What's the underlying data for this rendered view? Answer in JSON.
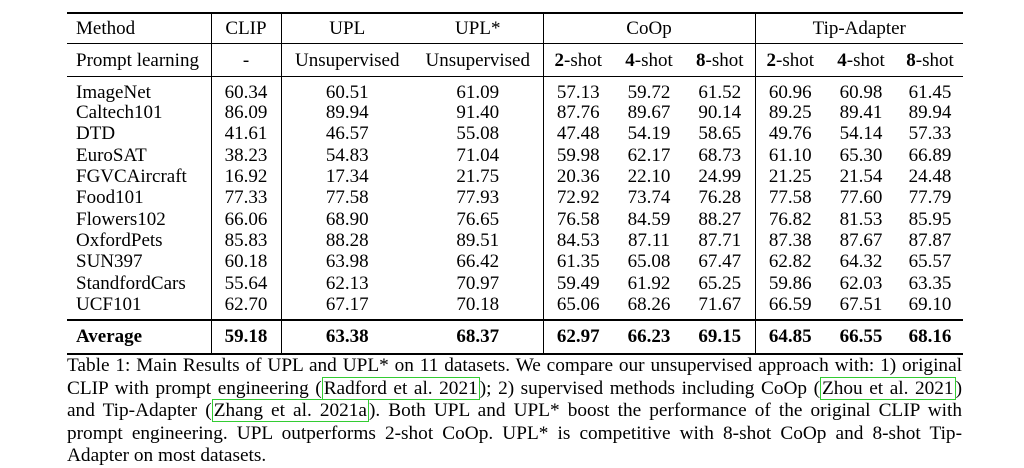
{
  "table": {
    "header1": [
      "Method",
      "CLIP",
      "UPL",
      "UPL*",
      "CoOp",
      "Tip-Adapter"
    ],
    "header2": {
      "label": "Prompt learning",
      "clip": "-",
      "upl": "Unsupervised",
      "uplstar": "Unsupervised",
      "shots": [
        {
          "num": "2",
          "suffix": "-shot"
        },
        {
          "num": "4",
          "suffix": "-shot"
        },
        {
          "num": "8",
          "suffix": "-shot"
        },
        {
          "num": "2",
          "suffix": "-shot"
        },
        {
          "num": "4",
          "suffix": "-shot"
        },
        {
          "num": "8",
          "suffix": "-shot"
        }
      ]
    },
    "rows": [
      [
        "ImageNet",
        "60.34",
        "60.51",
        "61.09",
        "57.13",
        "59.72",
        "61.52",
        "60.96",
        "60.98",
        "61.45"
      ],
      [
        "Caltech101",
        "86.09",
        "89.94",
        "91.40",
        "87.76",
        "89.67",
        "90.14",
        "89.25",
        "89.41",
        "89.94"
      ],
      [
        "DTD",
        "41.61",
        "46.57",
        "55.08",
        "47.48",
        "54.19",
        "58.65",
        "49.76",
        "54.14",
        "57.33"
      ],
      [
        "EuroSAT",
        "38.23",
        "54.83",
        "71.04",
        "59.98",
        "62.17",
        "68.73",
        "61.10",
        "65.30",
        "66.89"
      ],
      [
        "FGVCAircraft",
        "16.92",
        "17.34",
        "21.75",
        "20.36",
        "22.10",
        "24.99",
        "21.25",
        "21.54",
        "24.48"
      ],
      [
        "Food101",
        "77.33",
        "77.58",
        "77.93",
        "72.92",
        "73.74",
        "76.28",
        "77.58",
        "77.60",
        "77.79"
      ],
      [
        "Flowers102",
        "66.06",
        "68.90",
        "76.65",
        "76.58",
        "84.59",
        "88.27",
        "76.82",
        "81.53",
        "85.95"
      ],
      [
        "OxfordPets",
        "85.83",
        "88.28",
        "89.51",
        "84.53",
        "87.11",
        "87.71",
        "87.38",
        "87.67",
        "87.87"
      ],
      [
        "SUN397",
        "60.18",
        "63.98",
        "66.42",
        "61.35",
        "65.08",
        "67.47",
        "62.82",
        "64.32",
        "65.57"
      ],
      [
        "StandfordCars",
        "55.64",
        "62.13",
        "70.97",
        "59.49",
        "61.92",
        "65.25",
        "59.86",
        "62.03",
        "63.35"
      ],
      [
        "UCF101",
        "62.70",
        "67.17",
        "70.18",
        "65.06",
        "68.26",
        "71.67",
        "66.59",
        "67.51",
        "69.10"
      ]
    ],
    "average": [
      "Average",
      "59.18",
      "63.38",
      "68.37",
      "62.97",
      "66.23",
      "69.15",
      "64.85",
      "66.55",
      "68.16"
    ]
  },
  "caption": {
    "t1": "Table 1: Main Results of UPL and UPL* on 11 datasets. We compare our unsupervised approach with: 1) original CLIP with prompt engineering (",
    "c1": "Radford et al. 2021",
    "t2": "); 2) supervised methods including CoOp (",
    "c2": "Zhou et al. 2021",
    "t3": ") and Tip-Adapter (",
    "c3": "Zhang et al. 2021a",
    "t4": "). Both UPL and UPL* boost the performance of the original CLIP with prompt engineering. UPL outperforms 2-shot CoOp. UPL* is competitive with 8-shot CoOp and 8-shot Tip-Adapter on most datasets."
  },
  "colors": {
    "citation_box": "#33cc33"
  }
}
